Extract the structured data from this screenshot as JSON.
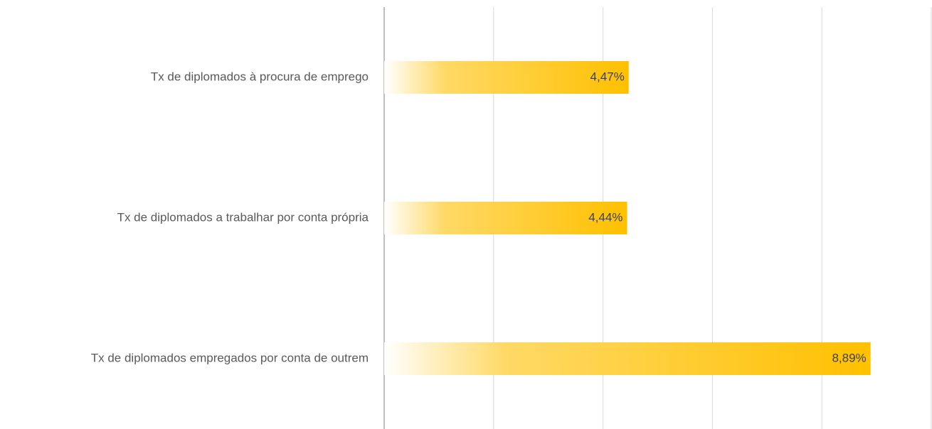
{
  "chart_data": {
    "type": "bar",
    "orientation": "horizontal",
    "categories": [
      "Tx de diplomados à procura de emprego",
      "Tx de diplomados a trabalhar por conta própria",
      "Tx de diplomados empregados por conta de outrem"
    ],
    "values": [
      4.47,
      4.44,
      8.89
    ],
    "value_labels": [
      "4,47%",
      "4,44%",
      "8,89%"
    ],
    "color": "#ffc000",
    "xlim": [
      0,
      10
    ],
    "xticks": [
      0,
      2,
      4,
      6,
      8,
      10
    ],
    "grid": true
  }
}
